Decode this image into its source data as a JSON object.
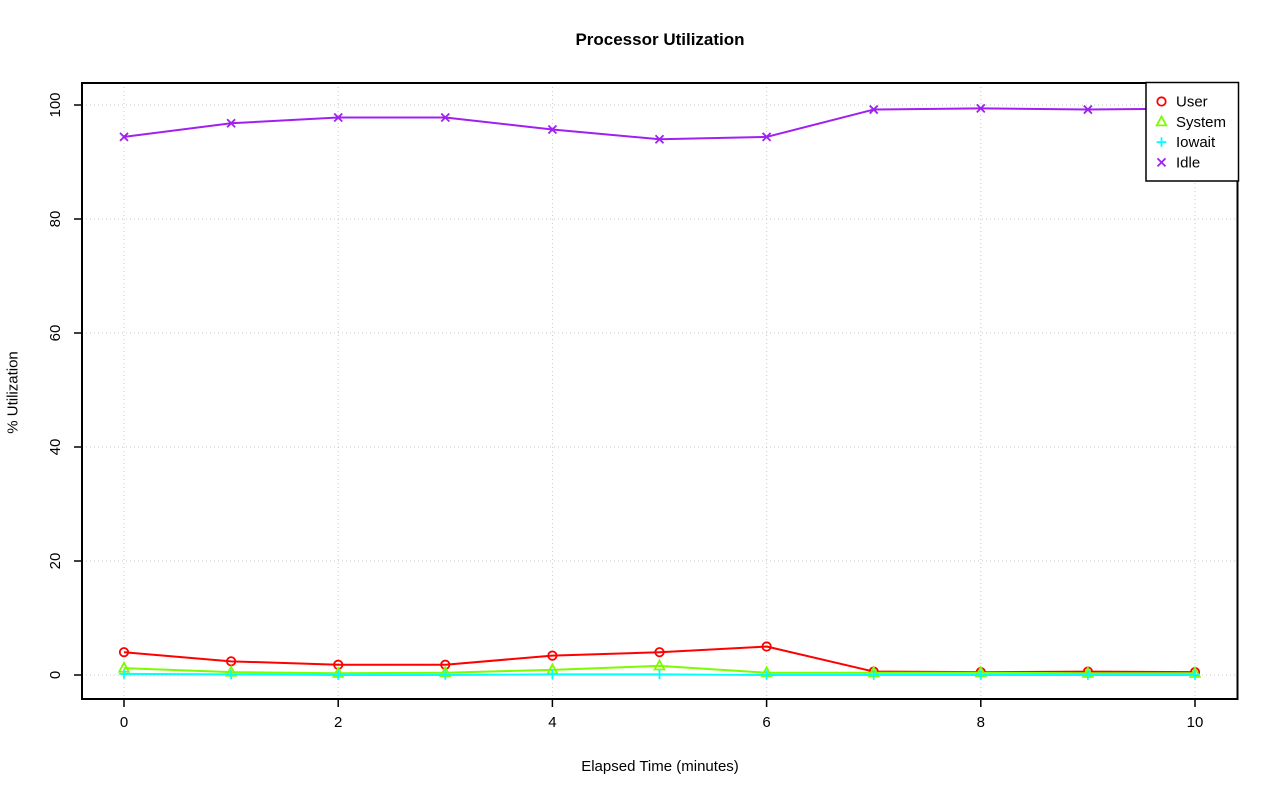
{
  "window": {
    "background": "#ffffff"
  },
  "chart_data": {
    "type": "line",
    "title": "Processor Utilization",
    "xlabel": "Elapsed Time (minutes)",
    "ylabel": "% Utilization",
    "x": [
      0,
      1,
      2,
      3,
      4,
      5,
      6,
      7,
      8,
      9,
      10
    ],
    "xlim": [
      0,
      10
    ],
    "ylim": [
      0,
      100
    ],
    "x_ticks": [
      0,
      2,
      4,
      6,
      8,
      10
    ],
    "y_ticks": [
      0,
      20,
      40,
      60,
      80,
      100
    ],
    "grid": true,
    "grid_style": "dotted-lightgray",
    "legend_position": "top-right-inside",
    "series": [
      {
        "name": "User",
        "color": "#ff0000",
        "marker": "circle",
        "values": [
          4.0,
          2.4,
          1.8,
          1.8,
          3.4,
          4.0,
          5.0,
          0.6,
          0.5,
          0.6,
          0.5
        ]
      },
      {
        "name": "System",
        "color": "#7cfc00",
        "marker": "triangle",
        "values": [
          1.2,
          0.5,
          0.3,
          0.4,
          0.9,
          1.6,
          0.4,
          0.4,
          0.4,
          0.3,
          0.3
        ]
      },
      {
        "name": "Iowait",
        "color": "#00ffff",
        "marker": "plus",
        "values": [
          0.2,
          0.1,
          0.0,
          0.0,
          0.1,
          0.1,
          0.0,
          0.0,
          0.0,
          0.0,
          0.0
        ]
      },
      {
        "name": "Idle",
        "color": "#a020f0",
        "marker": "x",
        "values": [
          94.4,
          96.8,
          97.8,
          97.8,
          95.7,
          94.0,
          94.4,
          99.2,
          99.4,
          99.2,
          99.4
        ]
      }
    ],
    "axis_color": "#000000",
    "grid_color": "#c8c8c8"
  }
}
